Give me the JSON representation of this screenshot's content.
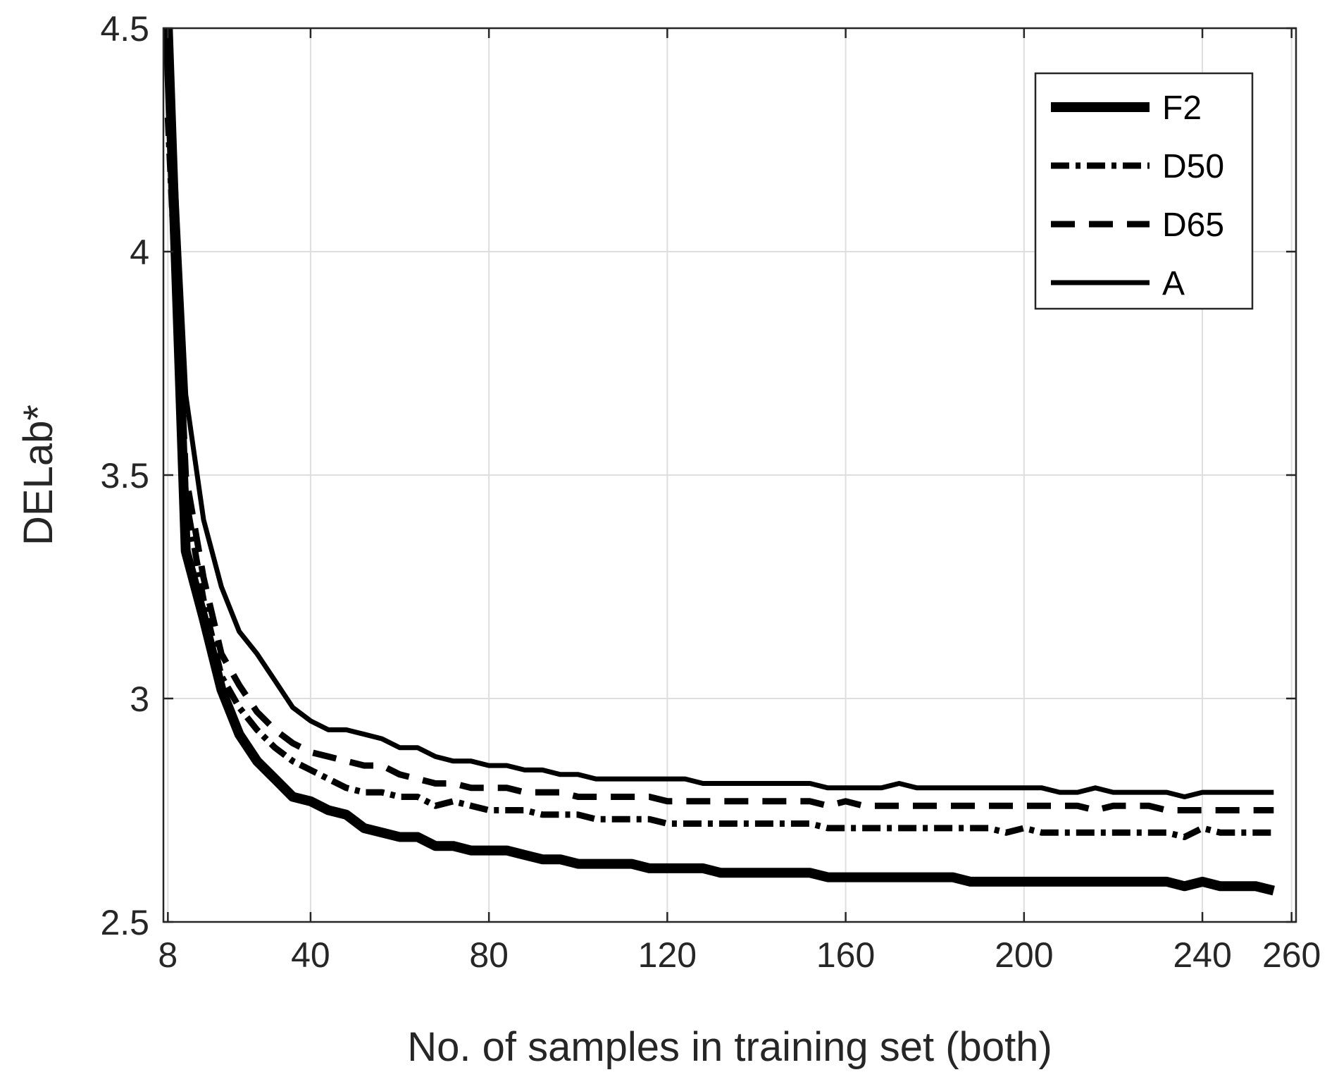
{
  "chart_data": {
    "type": "line",
    "xlabel": "No. of samples in training set (both)",
    "ylabel": "DELab*",
    "xlim": [
      7,
      261
    ],
    "ylim": [
      2.5,
      4.5
    ],
    "xticks": [
      8,
      40,
      80,
      120,
      160,
      200,
      240,
      260
    ],
    "yticks": [
      2.5,
      3,
      3.5,
      4,
      4.5
    ],
    "xtick_labels": [
      "8",
      "40",
      "80",
      "120",
      "160",
      "200",
      "240",
      "260"
    ],
    "ytick_labels": [
      "2.5",
      "3",
      "3.5",
      "4",
      "4.5"
    ],
    "grid": true,
    "legend_position": "top-right",
    "x": [
      8,
      12,
      16,
      20,
      24,
      28,
      32,
      36,
      40,
      44,
      48,
      52,
      56,
      60,
      64,
      68,
      72,
      76,
      80,
      84,
      88,
      92,
      96,
      100,
      104,
      108,
      112,
      116,
      120,
      124,
      128,
      132,
      136,
      140,
      144,
      148,
      152,
      156,
      160,
      164,
      168,
      172,
      176,
      180,
      184,
      188,
      192,
      196,
      200,
      204,
      208,
      212,
      216,
      220,
      224,
      228,
      232,
      236,
      240,
      244,
      248,
      252,
      256
    ],
    "series": [
      {
        "name": "F2",
        "style": "thick-solid",
        "color": "#000000",
        "values": [
          4.5,
          3.33,
          3.18,
          3.02,
          2.92,
          2.86,
          2.82,
          2.78,
          2.77,
          2.75,
          2.74,
          2.71,
          2.7,
          2.69,
          2.69,
          2.67,
          2.67,
          2.66,
          2.66,
          2.66,
          2.65,
          2.64,
          2.64,
          2.63,
          2.63,
          2.63,
          2.63,
          2.62,
          2.62,
          2.62,
          2.62,
          2.61,
          2.61,
          2.61,
          2.61,
          2.61,
          2.61,
          2.6,
          2.6,
          2.6,
          2.6,
          2.6,
          2.6,
          2.6,
          2.6,
          2.59,
          2.59,
          2.59,
          2.59,
          2.59,
          2.59,
          2.59,
          2.59,
          2.59,
          2.59,
          2.59,
          2.59,
          2.58,
          2.59,
          2.58,
          2.58,
          2.58,
          2.57
        ]
      },
      {
        "name": "D50",
        "style": "dash-dot",
        "color": "#000000",
        "values": [
          4.3,
          3.45,
          3.22,
          3.05,
          2.98,
          2.93,
          2.89,
          2.86,
          2.84,
          2.82,
          2.8,
          2.79,
          2.79,
          2.78,
          2.78,
          2.76,
          2.77,
          2.76,
          2.75,
          2.75,
          2.75,
          2.74,
          2.74,
          2.74,
          2.73,
          2.73,
          2.73,
          2.73,
          2.72,
          2.72,
          2.72,
          2.72,
          2.72,
          2.72,
          2.72,
          2.72,
          2.72,
          2.71,
          2.71,
          2.71,
          2.71,
          2.71,
          2.71,
          2.71,
          2.71,
          2.71,
          2.71,
          2.7,
          2.71,
          2.7,
          2.7,
          2.7,
          2.7,
          2.7,
          2.7,
          2.7,
          2.7,
          2.69,
          2.71,
          2.7,
          2.7,
          2.7,
          2.7
        ]
      },
      {
        "name": "D65",
        "style": "dashed",
        "color": "#000000",
        "values": [
          4.4,
          3.5,
          3.27,
          3.1,
          3.03,
          2.97,
          2.93,
          2.9,
          2.88,
          2.87,
          2.86,
          2.85,
          2.85,
          2.83,
          2.82,
          2.81,
          2.81,
          2.8,
          2.8,
          2.8,
          2.79,
          2.79,
          2.79,
          2.78,
          2.78,
          2.78,
          2.78,
          2.78,
          2.77,
          2.77,
          2.77,
          2.77,
          2.77,
          2.77,
          2.77,
          2.77,
          2.77,
          2.76,
          2.77,
          2.76,
          2.76,
          2.76,
          2.76,
          2.76,
          2.76,
          2.76,
          2.76,
          2.76,
          2.76,
          2.76,
          2.76,
          2.76,
          2.75,
          2.76,
          2.76,
          2.76,
          2.75,
          2.75,
          2.75,
          2.75,
          2.75,
          2.75,
          2.75
        ]
      },
      {
        "name": "A",
        "style": "solid",
        "color": "#000000",
        "values": [
          4.5,
          3.68,
          3.4,
          3.25,
          3.15,
          3.1,
          3.04,
          2.98,
          2.95,
          2.93,
          2.93,
          2.92,
          2.91,
          2.89,
          2.89,
          2.87,
          2.86,
          2.86,
          2.85,
          2.85,
          2.84,
          2.84,
          2.83,
          2.83,
          2.82,
          2.82,
          2.82,
          2.82,
          2.82,
          2.82,
          2.81,
          2.81,
          2.81,
          2.81,
          2.81,
          2.81,
          2.81,
          2.8,
          2.8,
          2.8,
          2.8,
          2.81,
          2.8,
          2.8,
          2.8,
          2.8,
          2.8,
          2.8,
          2.8,
          2.8,
          2.79,
          2.79,
          2.8,
          2.79,
          2.79,
          2.79,
          2.79,
          2.78,
          2.79,
          2.79,
          2.79,
          2.79,
          2.79
        ]
      }
    ]
  }
}
